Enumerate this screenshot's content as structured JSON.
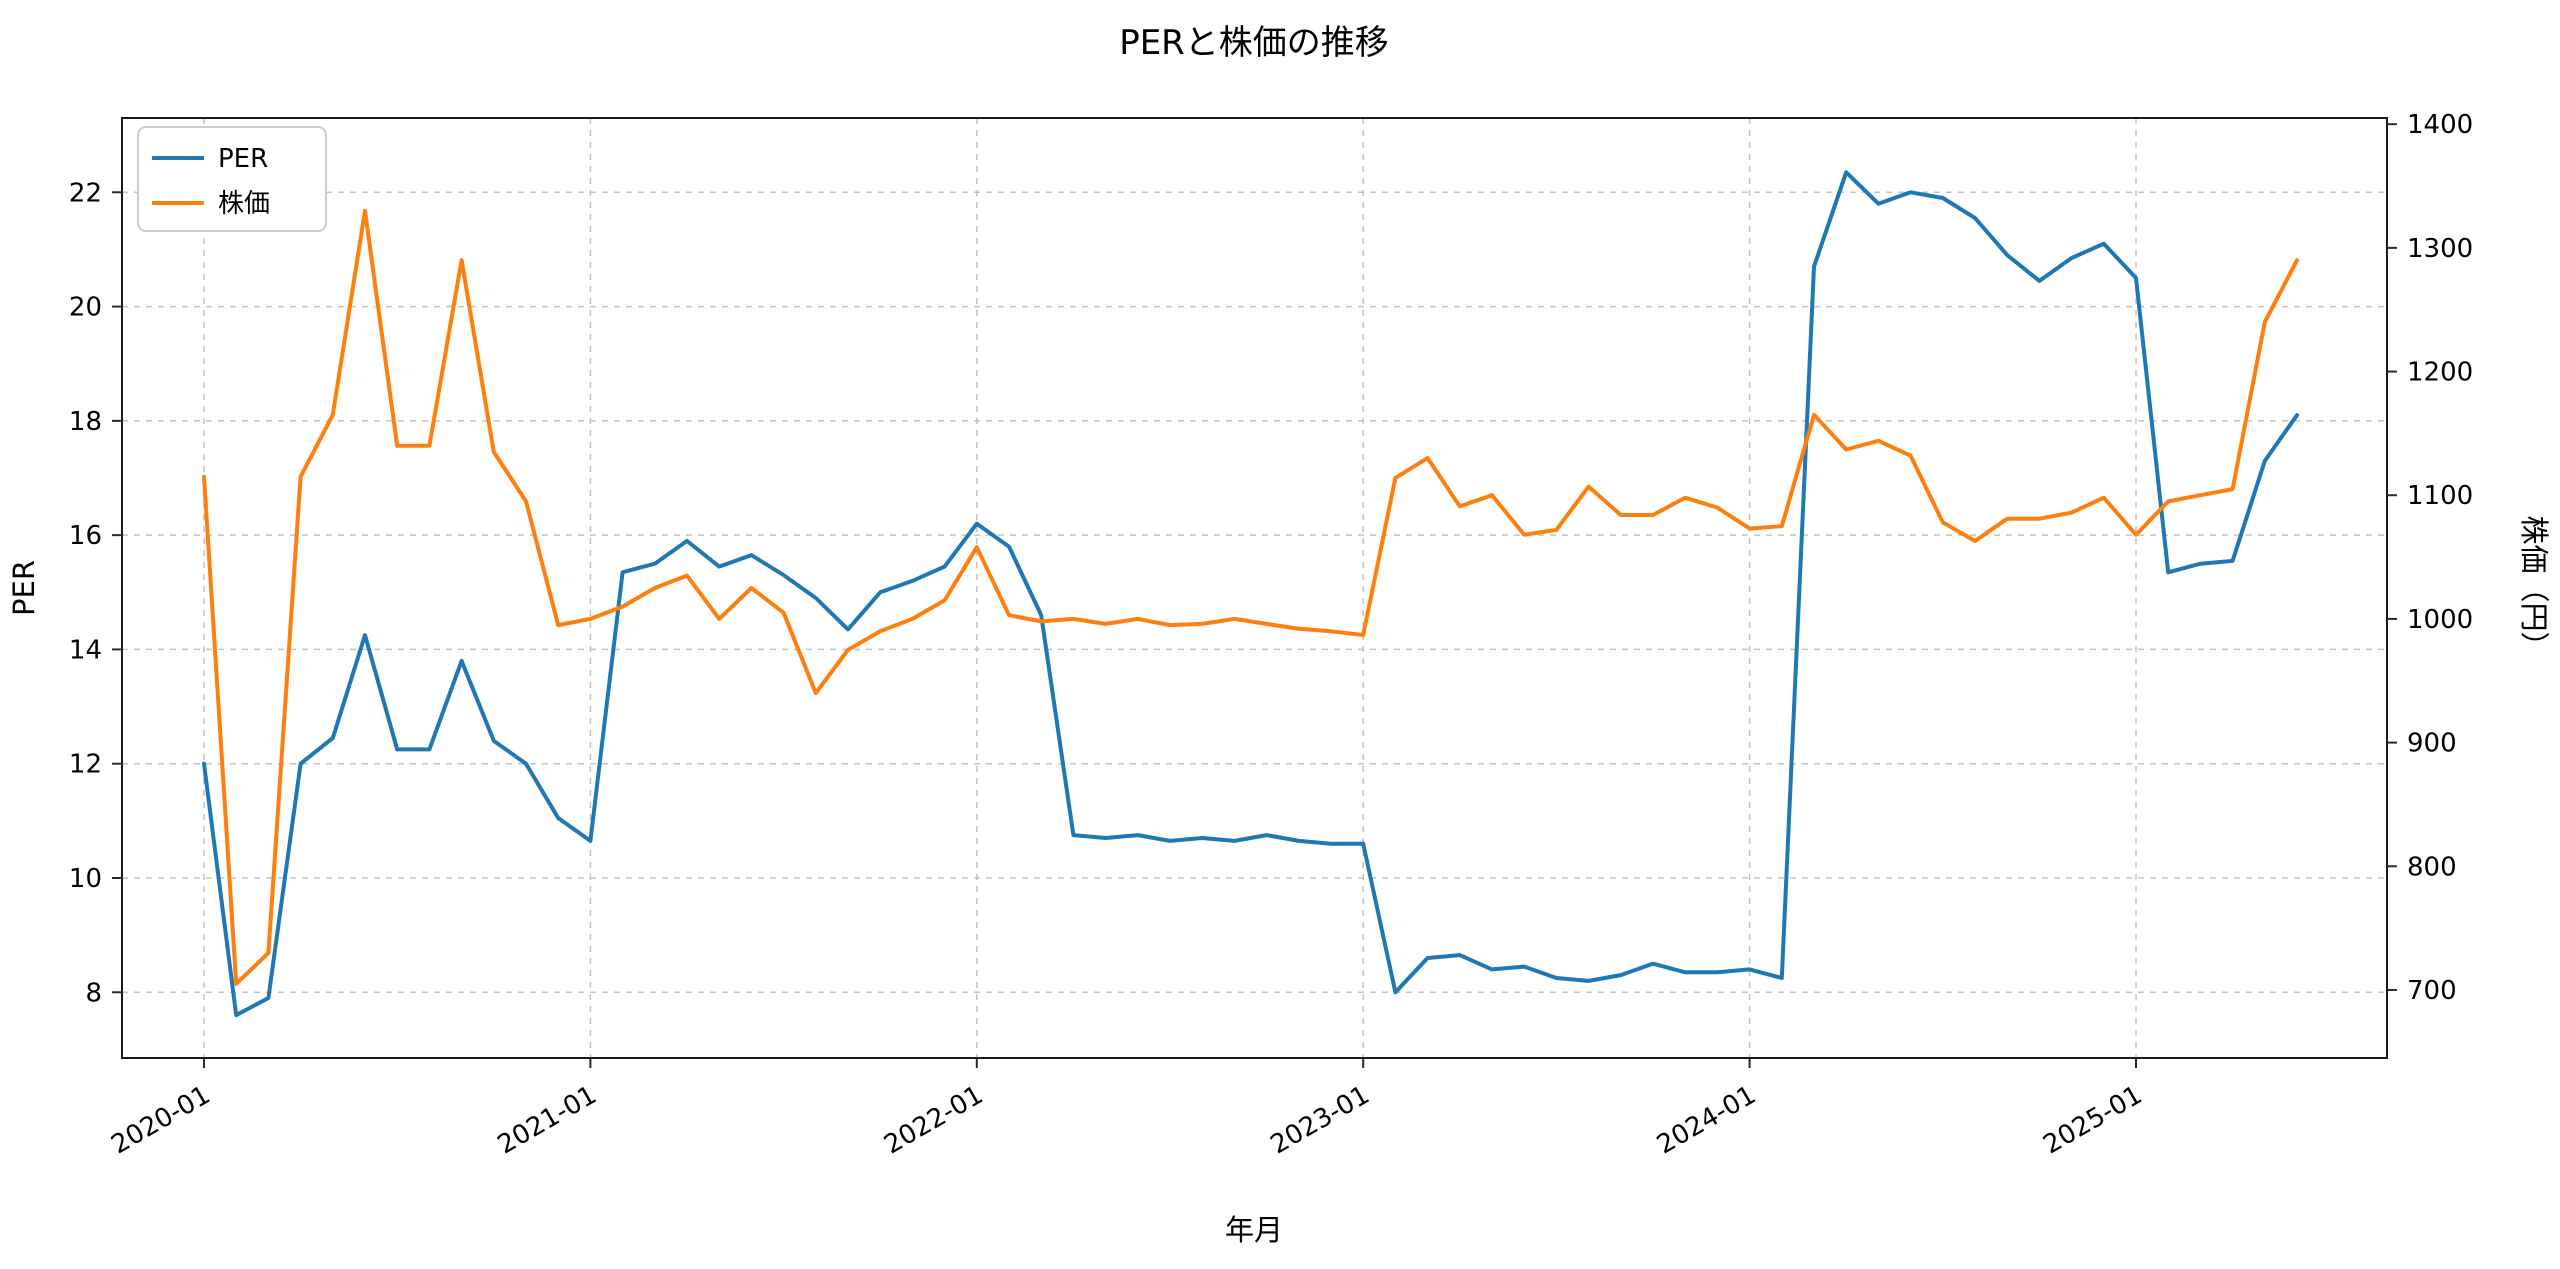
{
  "title": "PERと株価の推移",
  "xlabel": "年月",
  "colors": {
    "per": "#1f77b4",
    "price": "#ff7f0e",
    "grid": "#b9b9b9",
    "spine": "#1a1a1a",
    "tick_mark": "#2a2a2a"
  },
  "chart_data": {
    "type": "line",
    "title": "PERと株価の推移",
    "xlabel": "年月",
    "grid": "dashed",
    "legend_position": "upper left",
    "x_tick_labels": [
      "2020-01",
      "2021-01",
      "2022-01",
      "2023-01",
      "2024-01",
      "2025-01"
    ],
    "x_tick_indices": [
      0,
      12,
      24,
      36,
      48,
      60
    ],
    "left_axis": {
      "label": "PER",
      "color": "#1f77b4",
      "ticks": [
        8,
        10,
        12,
        14,
        16,
        18,
        20,
        22
      ],
      "range": [
        6.85,
        23.3
      ]
    },
    "right_axis": {
      "label": "株価（円）",
      "color": "#ff7f0e",
      "ticks": [
        700,
        800,
        900,
        1000,
        1100,
        1200,
        1300,
        1400
      ],
      "range": [
        645,
        1405
      ]
    },
    "x": [
      "2020-01",
      "2020-02",
      "2020-03",
      "2020-04",
      "2020-05",
      "2020-06",
      "2020-07",
      "2020-08",
      "2020-09",
      "2020-10",
      "2020-11",
      "2020-12",
      "2021-01",
      "2021-02",
      "2021-03",
      "2021-04",
      "2021-05",
      "2021-06",
      "2021-07",
      "2021-08",
      "2021-09",
      "2021-10",
      "2021-11",
      "2021-12",
      "2022-01",
      "2022-02",
      "2022-03",
      "2022-04",
      "2022-05",
      "2022-06",
      "2022-07",
      "2022-08",
      "2022-09",
      "2022-10",
      "2022-11",
      "2022-12",
      "2023-01",
      "2023-02",
      "2023-03",
      "2023-04",
      "2023-05",
      "2023-06",
      "2023-07",
      "2023-08",
      "2023-09",
      "2023-10",
      "2023-11",
      "2023-12",
      "2024-01",
      "2024-02",
      "2024-03",
      "2024-04",
      "2024-05",
      "2024-06",
      "2024-07",
      "2024-08",
      "2024-09",
      "2024-10",
      "2024-11",
      "2024-12",
      "2025-01",
      "2025-02",
      "2025-03",
      "2025-04",
      "2025-05",
      "2025-06"
    ],
    "series": [
      {
        "name": "PER",
        "axis": "left",
        "color": "#1f77b4",
        "values": [
          12.0,
          7.6,
          7.9,
          12.0,
          12.45,
          14.25,
          12.25,
          12.25,
          13.8,
          12.4,
          12.0,
          11.05,
          10.65,
          15.35,
          15.5,
          15.9,
          15.45,
          15.65,
          15.3,
          14.9,
          14.35,
          15.0,
          15.2,
          15.45,
          16.2,
          15.8,
          14.6,
          10.75,
          10.7,
          10.75,
          10.65,
          10.7,
          10.65,
          10.75,
          10.65,
          10.6,
          10.6,
          8.0,
          8.6,
          8.65,
          8.4,
          8.45,
          8.25,
          8.2,
          8.3,
          8.5,
          8.35,
          8.35,
          8.4,
          8.25,
          20.7,
          22.35,
          21.8,
          22.0,
          21.9,
          21.55,
          20.9,
          20.45,
          20.85,
          21.1,
          20.5,
          15.35,
          15.5,
          15.55,
          17.3,
          18.1
        ]
      },
      {
        "name": "株価",
        "axis": "right",
        "color": "#ff7f0e",
        "values": [
          1115,
          705,
          730,
          1115,
          1165,
          1330,
          1140,
          1140,
          1290,
          1135,
          1095,
          995,
          1000,
          1010,
          1025,
          1035,
          1000,
          1025,
          1005,
          940,
          975,
          990,
          1000,
          1015,
          1058,
          1003,
          998,
          1000,
          996,
          1000,
          995,
          996,
          1000,
          996,
          992,
          990,
          987,
          1114,
          1130,
          1091,
          1100,
          1068,
          1072,
          1107,
          1084,
          1084,
          1098,
          1090,
          1073,
          1075,
          1165,
          1137,
          1144,
          1132,
          1078,
          1063,
          1081,
          1081,
          1086,
          1098,
          1068,
          1095,
          1100,
          1105,
          1240,
          1290
        ]
      }
    ]
  }
}
